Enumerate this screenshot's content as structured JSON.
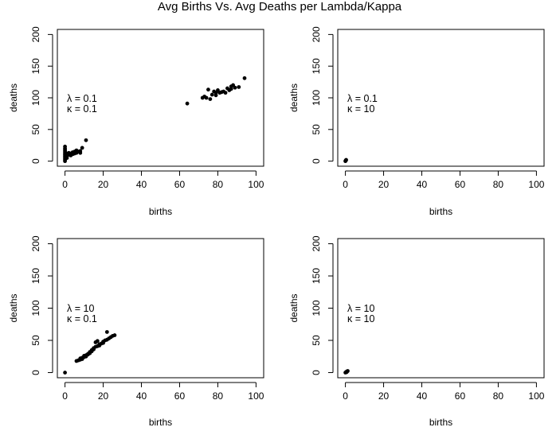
{
  "figure": {
    "title": "Avg Births Vs. Avg Deaths per Lambda/Kappa"
  },
  "chart_data": [
    {
      "type": "scatter",
      "xlabel": "births",
      "ylabel": "deaths",
      "xlim": [
        0,
        100
      ],
      "ylim": [
        0,
        200
      ],
      "xticks": [
        "0",
        "20",
        "40",
        "60",
        "80",
        "100"
      ],
      "yticks": [
        "0",
        "50",
        "100",
        "150",
        "200"
      ],
      "annotation": [
        "λ = 0.1",
        "κ = 0.1"
      ],
      "points": [
        [
          0,
          0
        ],
        [
          0,
          2
        ],
        [
          0,
          4
        ],
        [
          0,
          6
        ],
        [
          0,
          8
        ],
        [
          0,
          10
        ],
        [
          0,
          12
        ],
        [
          0,
          14
        ],
        [
          0,
          16
        ],
        [
          0,
          18
        ],
        [
          0,
          20
        ],
        [
          0,
          23
        ],
        [
          1,
          5
        ],
        [
          1,
          9
        ],
        [
          1,
          12
        ],
        [
          2,
          10
        ],
        [
          2,
          13
        ],
        [
          3,
          9
        ],
        [
          3,
          12
        ],
        [
          4,
          11
        ],
        [
          4,
          14
        ],
        [
          5,
          12
        ],
        [
          5,
          15
        ],
        [
          6,
          13
        ],
        [
          6,
          17
        ],
        [
          7,
          15
        ],
        [
          8,
          16
        ],
        [
          8,
          13
        ],
        [
          9,
          21
        ],
        [
          11,
          33
        ],
        [
          64,
          91
        ],
        [
          72,
          100
        ],
        [
          73,
          102
        ],
        [
          74,
          100
        ],
        [
          75,
          113
        ],
        [
          76,
          98
        ],
        [
          77,
          105
        ],
        [
          78,
          110
        ],
        [
          79,
          108
        ],
        [
          79,
          104
        ],
        [
          80,
          112
        ],
        [
          81,
          108
        ],
        [
          82,
          109
        ],
        [
          83,
          110
        ],
        [
          84,
          108
        ],
        [
          85,
          115
        ],
        [
          86,
          112
        ],
        [
          87,
          118
        ],
        [
          87,
          114
        ],
        [
          88,
          120
        ],
        [
          89,
          116
        ],
        [
          91,
          117
        ],
        [
          94,
          131
        ]
      ]
    },
    {
      "type": "scatter",
      "xlabel": "births",
      "ylabel": "deaths",
      "xlim": [
        0,
        100
      ],
      "ylim": [
        0,
        200
      ],
      "xticks": [
        "0",
        "20",
        "40",
        "60",
        "80",
        "100"
      ],
      "yticks": [
        "0",
        "50",
        "100",
        "150",
        "200"
      ],
      "annotation": [
        "λ = 0.1",
        "κ = 10"
      ],
      "points": [
        [
          0,
          0
        ],
        [
          0.2,
          1
        ],
        [
          0.4,
          2
        ],
        [
          0.1,
          0.5
        ],
        [
          0.3,
          1.5
        ]
      ]
    },
    {
      "type": "scatter",
      "xlabel": "births",
      "ylabel": "deaths",
      "xlim": [
        0,
        100
      ],
      "ylim": [
        0,
        200
      ],
      "xticks": [
        "0",
        "20",
        "40",
        "60",
        "80",
        "100"
      ],
      "yticks": [
        "0",
        "50",
        "100",
        "150",
        "200"
      ],
      "annotation": [
        "λ = 10",
        "κ = 0.1"
      ],
      "points": [
        [
          0,
          0
        ],
        [
          6,
          18
        ],
        [
          7,
          19
        ],
        [
          8,
          20
        ],
        [
          8,
          22
        ],
        [
          9,
          21
        ],
        [
          9,
          23
        ],
        [
          10,
          24
        ],
        [
          10,
          26
        ],
        [
          11,
          25
        ],
        [
          11,
          27
        ],
        [
          12,
          28
        ],
        [
          12,
          29
        ],
        [
          13,
          30
        ],
        [
          13,
          32
        ],
        [
          14,
          33
        ],
        [
          14,
          35
        ],
        [
          15,
          36
        ],
        [
          15,
          38
        ],
        [
          16,
          40
        ],
        [
          16,
          47
        ],
        [
          17,
          41
        ],
        [
          17,
          49
        ],
        [
          18,
          42
        ],
        [
          18,
          44
        ],
        [
          19,
          45
        ],
        [
          20,
          46
        ],
        [
          20,
          48
        ],
        [
          21,
          50
        ],
        [
          22,
          51
        ],
        [
          22,
          63
        ],
        [
          23,
          53
        ],
        [
          24,
          55
        ],
        [
          25,
          57
        ],
        [
          26,
          58
        ]
      ]
    },
    {
      "type": "scatter",
      "xlabel": "births",
      "ylabel": "deaths",
      "xlim": [
        0,
        100
      ],
      "ylim": [
        0,
        200
      ],
      "xticks": [
        "0",
        "20",
        "40",
        "60",
        "80",
        "100"
      ],
      "yticks": [
        "0",
        "50",
        "100",
        "150",
        "200"
      ],
      "annotation": [
        "λ = 10",
        "κ = 10"
      ],
      "points": [
        [
          0,
          0
        ],
        [
          0.4,
          1
        ],
        [
          0.8,
          1.5
        ],
        [
          1,
          2
        ],
        [
          1.2,
          2.5
        ],
        [
          0.6,
          0.5
        ]
      ]
    }
  ]
}
